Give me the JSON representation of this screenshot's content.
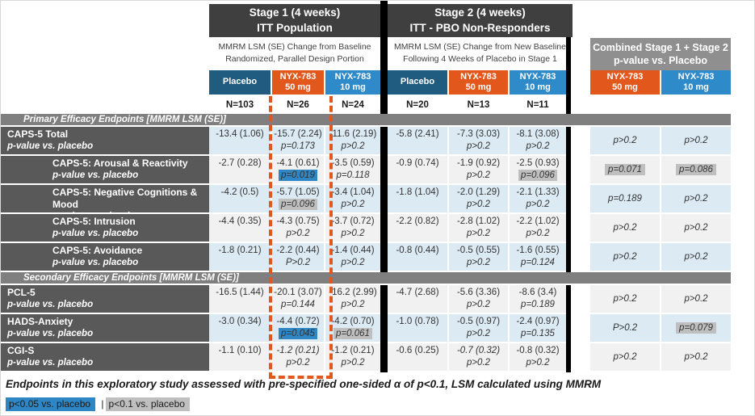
{
  "stage1": {
    "title_line1": "Stage 1 (4 weeks)",
    "title_line2": "ITT Population",
    "subnote_line1": "MMRM LSM (SE) Change from Baseline",
    "subnote_line2": "Randomized, Parallel Design Portion",
    "columns": [
      {
        "label": "Placebo",
        "sub": "",
        "n": "N=103",
        "color": "#1F5C7F"
      },
      {
        "label": "NYX-783",
        "sub": "50 mg",
        "n": "N=26",
        "color": "#E2581C"
      },
      {
        "label": "NYX-783",
        "sub": "10 mg",
        "n": "N=24",
        "color": "#2F8AC9"
      }
    ]
  },
  "stage2": {
    "title_line1": "Stage 2 (4 weeks)",
    "title_line2": "ITT - PBO Non-Responders",
    "subnote_line1": "MMRM LSM (SE) Change from New Baseline",
    "subnote_line2": "Following 4 Weeks of Placebo in Stage 1",
    "columns": [
      {
        "label": "Placebo",
        "sub": "",
        "n": "N=20",
        "color": "#1F5C7F"
      },
      {
        "label": "NYX-783",
        "sub": "50 mg",
        "n": "N=13",
        "color": "#E2581C"
      },
      {
        "label": "NYX-783",
        "sub": "10 mg",
        "n": "N=11",
        "color": "#2F8AC9"
      }
    ]
  },
  "combined": {
    "title_line1": "Combined Stage 1 + Stage 2",
    "title_line2": "p-value vs. Placebo",
    "columns": [
      {
        "label": "NYX-783",
        "sub": "50 mg",
        "color": "#E2581C"
      },
      {
        "label": "NYX-783",
        "sub": "10 mg",
        "color": "#2F8AC9"
      }
    ]
  },
  "table": {
    "rows": [
      {
        "type": "section",
        "label": "Primary Efficacy Endpoints [MMRM LSM (SE)]"
      },
      {
        "type": "data",
        "label": "CAPS-5 Total",
        "sublabel": "p-value vs. placebo",
        "indent": false,
        "shade": "blue",
        "s1": [
          {
            "v": "-13.4 (1.06)"
          },
          {
            "v": "-15.7 (2.24)",
            "p": "p=0.173"
          },
          {
            "v": "-11.6 (2.19)",
            "p": "p>0.2"
          }
        ],
        "s2": [
          {
            "v": "-5.8 (2.41)"
          },
          {
            "v": "-7.3 (3.03)",
            "p": "p>0.2"
          },
          {
            "v": "-8.1 (3.08)",
            "p": "p>0.2"
          }
        ],
        "comb": [
          {
            "p": "p>0.2"
          },
          {
            "p": "p>0.2"
          }
        ]
      },
      {
        "type": "data",
        "label": "CAPS-5: Arousal & Reactivity",
        "sublabel": "p-value vs. placebo",
        "indent": true,
        "shade": "gray",
        "s1": [
          {
            "v": "-2.7 (0.28)"
          },
          {
            "v": "-4.1 (0.61)",
            "p": "p=0.019",
            "hl": "blue"
          },
          {
            "v": "-3.5 (0.59)",
            "p": "p=0.118"
          }
        ],
        "s2": [
          {
            "v": "-0.9 (0.74)"
          },
          {
            "v": "-1.9 (0.92)",
            "p": "p>0.2"
          },
          {
            "v": "-2.5 (0.93)",
            "p": "p=0.096",
            "hl": "gray"
          }
        ],
        "comb": [
          {
            "p": "p=0.071",
            "hl": "gray"
          },
          {
            "p": "p=0.086",
            "hl": "gray"
          }
        ]
      },
      {
        "type": "data",
        "label": "CAPS-5: Negative Cognitions & Mood",
        "sublabel": "p-value vs. placebo",
        "indent": true,
        "shade": "blue",
        "s1": [
          {
            "v": "-4.2 (0.5)"
          },
          {
            "v": "-5.7 (1.05)",
            "p": "p=0.096",
            "hl": "gray"
          },
          {
            "v": "-3.4 (1.04)",
            "p": "p>0.2"
          }
        ],
        "s2": [
          {
            "v": "-1.8 (1.04)"
          },
          {
            "v": "-2.0 (1.29)",
            "p": "p>0.2"
          },
          {
            "v": "-2.1 (1.33)",
            "p": "p>0.2"
          }
        ],
        "comb": [
          {
            "p": "p=0.189"
          },
          {
            "p": "p>0.2"
          }
        ]
      },
      {
        "type": "data",
        "label": "CAPS-5: Intrusion",
        "sublabel": "p-value vs. placebo",
        "indent": true,
        "shade": "gray",
        "s1": [
          {
            "v": "-4.4 (0.35)"
          },
          {
            "v": "-4.3 (0.75)",
            "p": "p>0.2"
          },
          {
            "v": "-3.7 (0.72)",
            "p": "p>0.2"
          }
        ],
        "s2": [
          {
            "v": "-2.2 (0.82)"
          },
          {
            "v": "-2.8 (1.02)",
            "p": "p>0.2"
          },
          {
            "v": "-2.2 (1.02)",
            "p": "p>0.2"
          }
        ],
        "comb": [
          {
            "p": "p>0.2"
          },
          {
            "p": "p>0.2"
          }
        ]
      },
      {
        "type": "data",
        "label": "CAPS-5: Avoidance",
        "sublabel": "p-value vs. placebo",
        "indent": true,
        "shade": "blue",
        "s1": [
          {
            "v": "-1.8 (0.21)"
          },
          {
            "v": "-2.2 (0.44)",
            "p": "P>0.2"
          },
          {
            "v": "-1.4 (0.44)",
            "p": "p>0.2"
          }
        ],
        "s2": [
          {
            "v": "-0.8 (0.44)"
          },
          {
            "v": "-0.5 (0.55)",
            "p": "p>0.2"
          },
          {
            "v": "-1.6 (0.55)",
            "p": "p=0.124"
          }
        ],
        "comb": [
          {
            "p": "p>0.2"
          },
          {
            "p": "p>0.2"
          }
        ]
      },
      {
        "type": "section",
        "label": "Secondary Efficacy Endpoints [MMRM LSM (SE)]"
      },
      {
        "type": "data",
        "label": "PCL-5",
        "sublabel": "p-value vs. placebo",
        "indent": false,
        "shade": "gray",
        "s1": [
          {
            "v": "-16.5 (1.44)"
          },
          {
            "v": "-20.1 (3.07)",
            "p": "p=0.144"
          },
          {
            "v": "-16.2 (2.99)",
            "p": "p>0.2"
          }
        ],
        "s2": [
          {
            "v": "-4.7 (2.68)"
          },
          {
            "v": "-5.6 (3.36)",
            "p": "p>0.2"
          },
          {
            "v": "-8.6 (3.4)",
            "p": "p=0.189"
          }
        ],
        "comb": [
          {
            "p": "p>0.2"
          },
          {
            "p": "p>0.2"
          }
        ]
      },
      {
        "type": "data",
        "label": "HADS-Anxiety",
        "sublabel": "p-value vs. placebo",
        "indent": false,
        "shade": "blue",
        "s1": [
          {
            "v": "-3.0 (0.34)"
          },
          {
            "v": "-4.4 (0.72)",
            "p": "p=0.045",
            "hl": "blue"
          },
          {
            "v": "-4.2 (0.70)",
            "p": "p=0.061",
            "hl": "gray"
          }
        ],
        "s2": [
          {
            "v": "-1.0 (0.78)"
          },
          {
            "v": "-0.5 (0.97)",
            "p": "p>0.2"
          },
          {
            "v": "-2.4 (0.97)",
            "p": "p=0.135"
          }
        ],
        "comb": [
          {
            "p": "P>0.2"
          },
          {
            "p": "p=0.079",
            "hl": "gray"
          }
        ]
      },
      {
        "type": "data",
        "label": "CGI-S",
        "sublabel": "p-value vs. placebo",
        "indent": false,
        "shade": "gray",
        "s1": [
          {
            "v": "-1.1 (0.10)"
          },
          {
            "v": "-1.2 (0.21)",
            "vi": true,
            "p": "p>0.2"
          },
          {
            "v": "-1.2 (0.21)",
            "p": "p>0.2"
          }
        ],
        "s2": [
          {
            "v": "-0.6 (0.25)"
          },
          {
            "v": "-0.7 (0.32)",
            "vi": true,
            "p": "p>0.2"
          },
          {
            "v": "-0.8 (0.32)",
            "p": "p>0.2"
          }
        ],
        "comb": [
          {
            "p": "p>0.2"
          },
          {
            "p": "p>0.2"
          }
        ]
      }
    ]
  },
  "footnote": "Endpoints in this exploratory study assessed with pre-specified one-sided α of p<0.1, LSM calculated using MMRM",
  "legend": {
    "blue_label": "p<0.05 vs. placebo",
    "separator": "|",
    "gray_label": "p<0.1 vs. placebo"
  },
  "colors": {
    "stage_header": "#3F3F3F",
    "section_bar": "#7F7F7F",
    "row_label": "#595959",
    "placebo_blue": "#1F5C7F",
    "nyx_orange": "#E2581C",
    "nyx_light_blue": "#2F8AC9",
    "combined_gray": "#8F8F8F",
    "zebra_blue": "#DCEAF4",
    "zebra_gray": "#F1F1F1",
    "highlight_blue": "#2E86C4",
    "highlight_gray": "#BFBFBF",
    "dashed_highlight": "#E2581C"
  }
}
